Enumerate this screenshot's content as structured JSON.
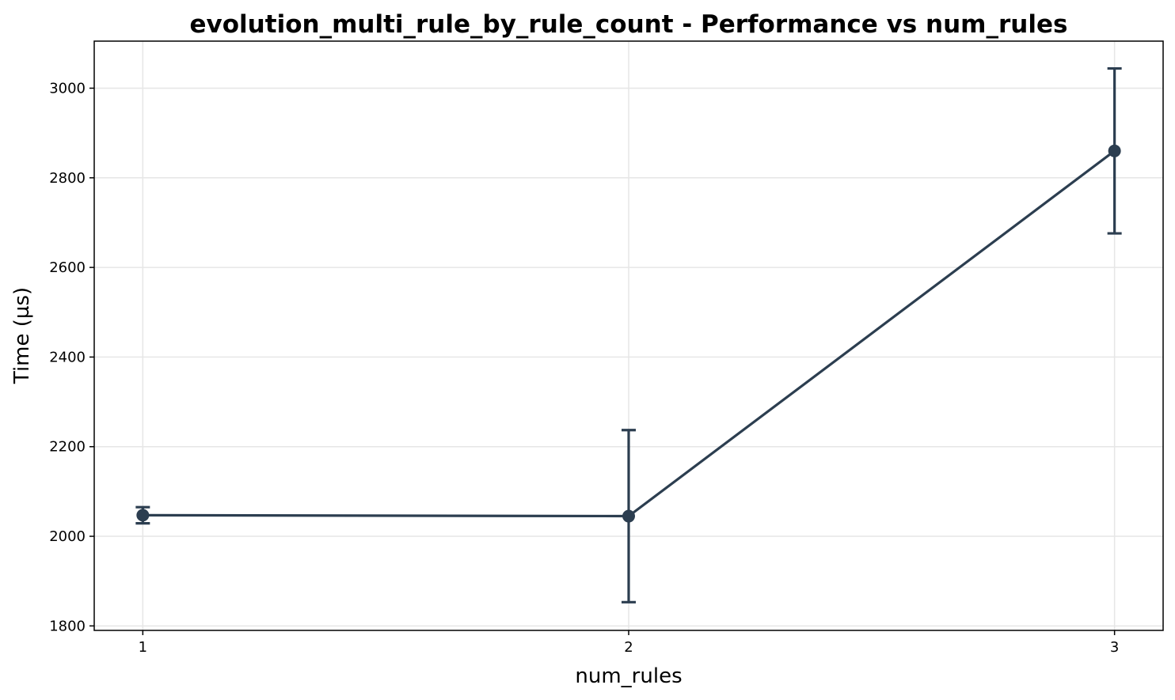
{
  "chart_data": {
    "type": "line",
    "title": "evolution_multi_rule_by_rule_count - Performance vs num_rules",
    "xlabel": "num_rules",
    "ylabel": "Time (µs)",
    "x": [
      1,
      2,
      3
    ],
    "xlim": [
      0.9,
      3.1
    ],
    "ylim": [
      1790,
      3105
    ],
    "xticks": [
      1,
      2,
      3
    ],
    "yticks": [
      1800,
      2000,
      2200,
      2400,
      2600,
      2800,
      3000
    ],
    "grid": true,
    "series": [
      {
        "values": [
          2047,
          2045,
          2860
        ],
        "errors": [
          18,
          192,
          184
        ],
        "color": "#2c3e50"
      }
    ]
  }
}
